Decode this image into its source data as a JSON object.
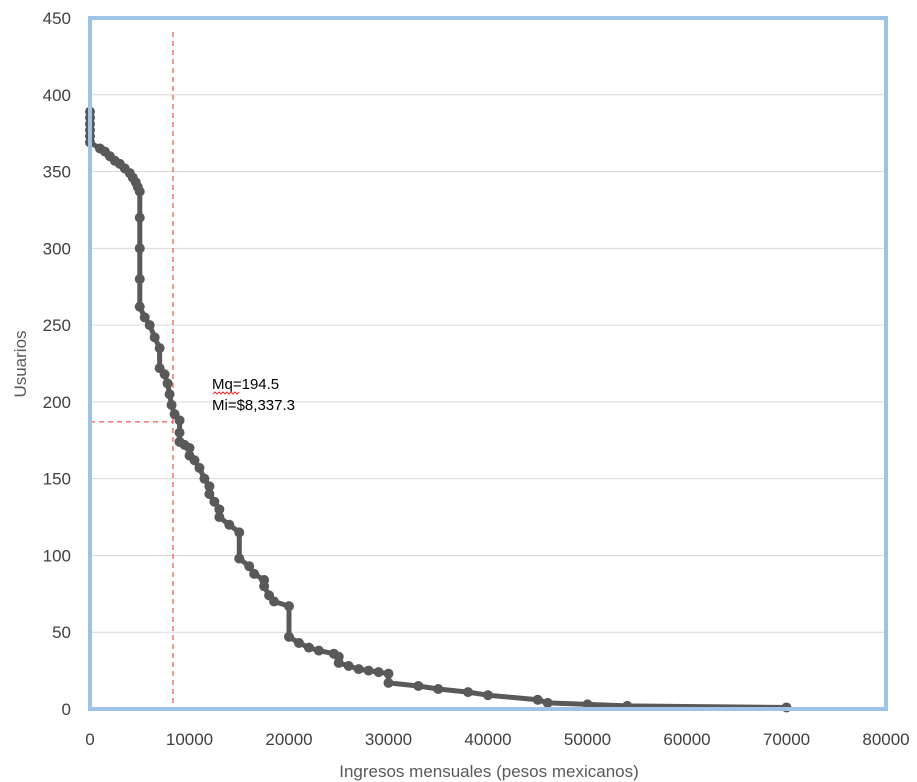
{
  "chart_data": {
    "type": "scatter",
    "xlabel": "Ingresos mensuales (pesos mexicanos)",
    "ylabel": "Usuarios",
    "xlim": [
      0,
      80000
    ],
    "ylim": [
      0,
      450
    ],
    "x_ticks": [
      "0",
      "10000",
      "20000",
      "30000",
      "40000",
      "50000",
      "60000",
      "70000",
      "80000"
    ],
    "y_ticks": [
      "0",
      "50",
      "100",
      "150",
      "200",
      "250",
      "300",
      "350",
      "400",
      "450"
    ],
    "grid": "horizontal",
    "colors": {
      "series": "#595959",
      "reference": "#e8302a",
      "frame": "#9dc3e6",
      "grid": "#d9d9d9"
    },
    "annotation": {
      "line1": "Mq=194.5",
      "line2": "Mi=$8,337.3",
      "x": 8337.3,
      "y": 187
    },
    "series": [
      {
        "points": [
          [
            0,
            389
          ],
          [
            0,
            385
          ],
          [
            0,
            381
          ],
          [
            0,
            377
          ],
          [
            0,
            373
          ],
          [
            0,
            369
          ],
          [
            1000,
            365
          ],
          [
            1500,
            363
          ],
          [
            2000,
            360
          ],
          [
            2500,
            357
          ],
          [
            3000,
            355
          ],
          [
            3500,
            352
          ],
          [
            4000,
            349
          ],
          [
            4300,
            346
          ],
          [
            4600,
            343
          ],
          [
            4800,
            340
          ],
          [
            5000,
            337
          ],
          [
            5000,
            320
          ],
          [
            5000,
            300
          ],
          [
            5000,
            280
          ],
          [
            5000,
            262
          ],
          [
            5500,
            255
          ],
          [
            6000,
            250
          ],
          [
            6500,
            242
          ],
          [
            7000,
            235
          ],
          [
            7000,
            222
          ],
          [
            7500,
            218
          ],
          [
            7800,
            212
          ],
          [
            8000,
            205
          ],
          [
            8200,
            198
          ],
          [
            8500,
            192
          ],
          [
            9000,
            188
          ],
          [
            9000,
            180
          ],
          [
            9000,
            174
          ],
          [
            9500,
            172
          ],
          [
            10000,
            170
          ],
          [
            10000,
            165
          ],
          [
            10500,
            162
          ],
          [
            11000,
            157
          ],
          [
            11500,
            150
          ],
          [
            12000,
            145
          ],
          [
            12000,
            140
          ],
          [
            12500,
            135
          ],
          [
            13000,
            130
          ],
          [
            13000,
            125
          ],
          [
            14000,
            120
          ],
          [
            15000,
            115
          ],
          [
            15000,
            98
          ],
          [
            16000,
            93
          ],
          [
            16500,
            88
          ],
          [
            17500,
            84
          ],
          [
            17500,
            80
          ],
          [
            18000,
            74
          ],
          [
            18500,
            70
          ],
          [
            20000,
            67
          ],
          [
            20000,
            47
          ],
          [
            21000,
            43
          ],
          [
            22000,
            40
          ],
          [
            23000,
            38
          ],
          [
            24500,
            36
          ],
          [
            25000,
            34
          ],
          [
            25000,
            30
          ],
          [
            26000,
            28
          ],
          [
            27000,
            26
          ],
          [
            28000,
            25
          ],
          [
            29000,
            24
          ],
          [
            30000,
            23
          ],
          [
            30000,
            17
          ],
          [
            33000,
            15
          ],
          [
            35000,
            13
          ],
          [
            38000,
            11
          ],
          [
            40000,
            9
          ],
          [
            45000,
            6
          ],
          [
            46000,
            4
          ],
          [
            50000,
            3
          ],
          [
            54000,
            2
          ],
          [
            70000,
            1
          ]
        ]
      }
    ]
  }
}
